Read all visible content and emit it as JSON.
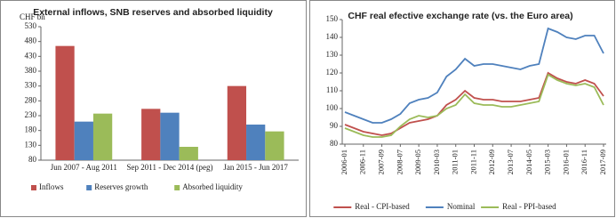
{
  "chart_data": [
    {
      "type": "bar",
      "title": "External inflows, SNB reserves and absorbed liquidity",
      "y_label": "CHF bn",
      "categories": [
        "Jun 2007 - Aug 2011",
        "Sep 2011 - Dec 2014 (peg)",
        "Jan 2015 - Jun 2017"
      ],
      "series": [
        {
          "name": "Inflows",
          "color": "#c0504d",
          "values": [
            465,
            253,
            330
          ]
        },
        {
          "name": "Reserves growth",
          "color": "#4f81bd",
          "values": [
            210,
            240,
            200
          ]
        },
        {
          "name": "Absorbed liquidity",
          "color": "#9bbb59",
          "values": [
            237,
            125,
            177
          ]
        }
      ],
      "ylim": [
        80,
        530
      ],
      "yticks": [
        80,
        130,
        180,
        230,
        280,
        330,
        380,
        430,
        480,
        530
      ]
    },
    {
      "type": "line",
      "title": "CHF real efective exchange rate (vs. the Euro area)",
      "categories": [
        "2006-01",
        null,
        "2006-11",
        null,
        "2007-09",
        null,
        "2008-07",
        null,
        "2009-05",
        null,
        "2010-03",
        null,
        "2011-01",
        null,
        "2011-11",
        null,
        "2012-09",
        null,
        "2013-07",
        null,
        "2014-05",
        null,
        "2015-03",
        null,
        "2016-01",
        null,
        "2016-11",
        null,
        "2017-09"
      ],
      "series": [
        {
          "name": "Real - CPI-based",
          "color": "#c0504d",
          "values": [
            91,
            89,
            87,
            86,
            85,
            86,
            89,
            92,
            93,
            94,
            96,
            102,
            105,
            110,
            106,
            105,
            105,
            104,
            104,
            104,
            105,
            106,
            120,
            117,
            115,
            114,
            116,
            114,
            107
          ]
        },
        {
          "name": "Nominal",
          "color": "#4f81bd",
          "values": [
            98,
            96,
            94,
            92,
            92,
            94,
            97,
            103,
            105,
            106,
            109,
            118,
            122,
            128,
            124,
            125,
            125,
            124,
            123,
            122,
            124,
            125,
            145,
            143,
            140,
            139,
            141,
            141,
            131
          ]
        },
        {
          "name": "Real - PPI-based",
          "color": "#9bbb59",
          "values": [
            89,
            87,
            85,
            84,
            84,
            85,
            90,
            94,
            96,
            95,
            96,
            100,
            102,
            108,
            103,
            102,
            102,
            101,
            101,
            102,
            103,
            104,
            119,
            116,
            114,
            113,
            114,
            112,
            102
          ]
        }
      ],
      "ylim": [
        80,
        150
      ],
      "yticks": [
        80,
        90,
        100,
        110,
        120,
        130,
        140,
        150
      ]
    }
  ]
}
